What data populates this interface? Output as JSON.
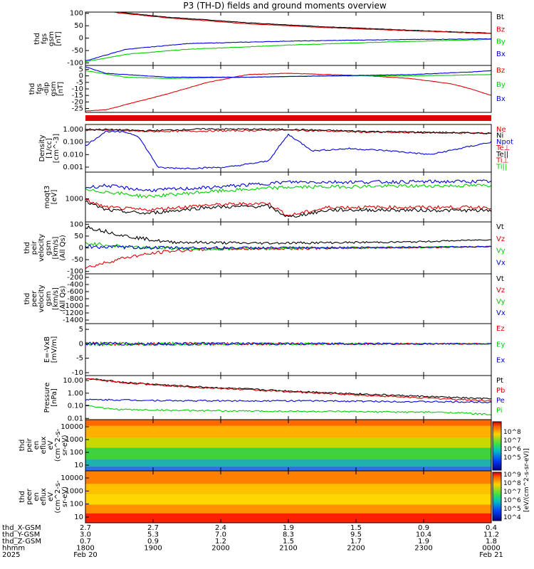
{
  "title": "P3 (TH-D) fields and ground moments overview",
  "colors": {
    "black": "#000000",
    "red": "#e00000",
    "green": "#00d000",
    "blue": "#0000e0"
  },
  "chart_data": [
    {
      "type": "line",
      "ylabel": [
        "thd",
        "fgs",
        "gsm",
        "[nT]"
      ],
      "yticks": [
        100,
        50,
        0,
        -50,
        -100
      ],
      "ylim": [
        -110,
        105
      ],
      "series": [
        {
          "name": "Bt",
          "color": "black",
          "x": [
            0,
            0.08,
            0.2,
            0.4,
            0.6,
            0.8,
            1
          ],
          "y": [
            140,
            105,
            85,
            62,
            45,
            32,
            20
          ]
        },
        {
          "name": "Bz",
          "color": "red",
          "x": [
            0,
            0.08,
            0.2,
            0.4,
            0.6,
            0.8,
            1
          ],
          "y": [
            130,
            102,
            82,
            58,
            42,
            30,
            18
          ]
        },
        {
          "name": "By",
          "color": "green",
          "x": [
            0,
            0.1,
            0.25,
            0.5,
            0.75,
            1
          ],
          "y": [
            -95,
            -65,
            -45,
            -28,
            -15,
            -5
          ]
        },
        {
          "name": "Bx",
          "color": "blue",
          "x": [
            0,
            0.1,
            0.25,
            0.5,
            0.75,
            1
          ],
          "y": [
            -92,
            -45,
            -22,
            -12,
            -6,
            -3
          ]
        }
      ],
      "legend": [
        "Bt",
        "Bz",
        "By",
        "Bx"
      ]
    },
    {
      "type": "line",
      "ylabel": [
        "thd",
        "fgs",
        "-dip",
        "gsm",
        "[nT]"
      ],
      "yticks": [
        5,
        0,
        -5,
        -10,
        -15,
        -20,
        -25
      ],
      "ylim": [
        -28,
        8
      ],
      "series": [
        {
          "name": "Bz",
          "color": "red",
          "x": [
            0,
            0.05,
            0.1,
            0.2,
            0.3,
            0.4,
            0.5,
            0.6,
            0.7,
            0.8,
            0.9,
            0.95,
            1
          ],
          "y": [
            -27,
            -26,
            -22,
            -14,
            -5,
            1,
            2,
            1,
            0,
            -2,
            -6,
            -10,
            -15
          ]
        },
        {
          "name": "By",
          "color": "green",
          "x": [
            0,
            0.1,
            0.2,
            0.4,
            0.6,
            0.8,
            1
          ],
          "y": [
            4,
            -1,
            -2,
            -1,
            0,
            0,
            1
          ]
        },
        {
          "name": "Bx",
          "color": "blue",
          "x": [
            0,
            0.05,
            0.2,
            0.4,
            0.6,
            0.8,
            0.95,
            1
          ],
          "y": [
            7,
            2,
            -1,
            -1,
            0,
            1,
            3,
            4
          ]
        }
      ],
      "legend": [
        "Bz",
        "By",
        "Bx"
      ]
    },
    {
      "type": "line",
      "ylabel": [
        "Density",
        "[1/cc]",
        "[cm^-3]"
      ],
      "yticks": [
        "1.000",
        "0.100",
        "0.010",
        "0.001"
      ],
      "ylog": true,
      "ylim": [
        0.0004,
        2.5
      ],
      "series": [
        {
          "name": "Ne",
          "color": "red",
          "x": [
            0,
            0.05,
            0.15,
            0.3,
            0.5,
            0.7,
            1
          ],
          "y": [
            0.9,
            0.9,
            0.7,
            0.75,
            0.9,
            0.6,
            0.5
          ]
        },
        {
          "name": "Ni",
          "color": "black",
          "x": [
            0,
            0.05,
            0.15,
            0.3,
            0.5,
            0.7,
            1
          ],
          "y": [
            1.0,
            1.0,
            0.8,
            1.1,
            1.0,
            0.7,
            0.5
          ]
        },
        {
          "name": "Npot",
          "color": "blue",
          "x": [
            0,
            0.05,
            0.1,
            0.13,
            0.18,
            0.25,
            0.35,
            0.45,
            0.5,
            0.56,
            0.65,
            0.75,
            0.85,
            1
          ],
          "y": [
            0.05,
            0.7,
            0.6,
            0.3,
            0.0009,
            0.0008,
            0.001,
            0.003,
            0.4,
            0.02,
            0.03,
            0.02,
            0.01,
            0.1
          ]
        }
      ],
      "legend": [
        "Ne",
        "Ni",
        "Npot",
        "Te⊥",
        "Te||",
        "Ti⊥",
        "Ti||"
      ]
    },
    {
      "type": "line",
      "ylabel": [
        "moqt3",
        "[eV]"
      ],
      "yticks": [
        "1000"
      ],
      "ylog": true,
      "ylim": [
        150,
        9000
      ],
      "series": [
        {
          "name": "Te⊥",
          "color": "red",
          "x": [
            0,
            0.05,
            0.15,
            0.3,
            0.45,
            0.5,
            0.6,
            0.75,
            1
          ],
          "y": [
            900,
            500,
            400,
            600,
            700,
            250,
            500,
            500,
            500
          ]
        },
        {
          "name": "Te||",
          "color": "black",
          "x": [
            0,
            0.05,
            0.15,
            0.3,
            0.45,
            0.5,
            0.6,
            0.75,
            1
          ],
          "y": [
            800,
            400,
            300,
            500,
            550,
            220,
            400,
            400,
            380
          ]
        },
        {
          "name": "Ti⊥",
          "color": "blue",
          "x": [
            0,
            0.05,
            0.15,
            0.3,
            0.5,
            0.7,
            1
          ],
          "y": [
            2500,
            3000,
            2000,
            2500,
            4000,
            4000,
            4200
          ]
        },
        {
          "name": "Ti||",
          "color": "green",
          "x": [
            0,
            0.05,
            0.15,
            0.3,
            0.5,
            0.7,
            1
          ],
          "y": [
            2000,
            1800,
            1200,
            1800,
            2600,
            2800,
            3000
          ]
        }
      ]
    },
    {
      "type": "line",
      "ylabel": [
        "thd",
        "peir",
        "velocity",
        "gsm",
        "[km/s]",
        "(All Qs)"
      ],
      "yticks": [
        100,
        50,
        0,
        -50,
        -100
      ],
      "ylim": [
        -110,
        110
      ],
      "series": [
        {
          "name": "Vt",
          "color": "black",
          "x": [
            0,
            0.1,
            0.2,
            0.4,
            0.6,
            0.8,
            1
          ],
          "y": [
            90,
            50,
            25,
            20,
            22,
            25,
            35
          ]
        },
        {
          "name": "Vz",
          "color": "red",
          "x": [
            0,
            0.1,
            0.2,
            0.3,
            0.5,
            0.7,
            1
          ],
          "y": [
            -85,
            -40,
            -15,
            -5,
            -3,
            0,
            5
          ]
        },
        {
          "name": "Vy",
          "color": "green",
          "x": [
            0,
            0.1,
            0.3,
            0.6,
            1
          ],
          "y": [
            20,
            5,
            -5,
            0,
            5
          ]
        },
        {
          "name": "Vx",
          "color": "blue",
          "x": [
            0,
            0.2,
            0.5,
            1
          ],
          "y": [
            5,
            0,
            0,
            5
          ]
        }
      ],
      "legend": [
        "Vt",
        "Vz",
        "Vy",
        "Vx"
      ]
    },
    {
      "type": "line",
      "ylabel": [
        "thd",
        "peer",
        "velocity",
        "gsm",
        "[km/s]",
        "(All Qs)"
      ],
      "yticks": [
        -200,
        -400,
        -600,
        -800,
        -1000,
        -1200,
        -1400
      ],
      "ylim": [
        -1500,
        -100
      ],
      "series": [],
      "legend": [
        "Vt",
        "Vz",
        "Vy",
        "Vx"
      ]
    },
    {
      "type": "line",
      "ylabel": [
        "E=-VxB",
        "[mV/m]"
      ],
      "yticks": [
        5,
        0,
        -5,
        -10
      ],
      "ylim": [
        -11,
        7
      ],
      "series": [
        {
          "name": "Ez",
          "color": "red",
          "x": [
            0,
            1
          ],
          "y": [
            0,
            0
          ]
        },
        {
          "name": "Ey",
          "color": "green",
          "x": [
            0,
            1
          ],
          "y": [
            0,
            0
          ]
        },
        {
          "name": "Ex",
          "color": "blue",
          "x": [
            0,
            1
          ],
          "y": [
            0,
            0
          ]
        }
      ],
      "legend": [
        "Ez",
        "Ey",
        "Ex"
      ]
    },
    {
      "type": "line",
      "ylabel": [
        "Pressure",
        "[nPa]"
      ],
      "yticks": [
        "10.00",
        "1.00",
        "0.10",
        "0.01"
      ],
      "ylog": true,
      "ylim": [
        0.008,
        25
      ],
      "series": [
        {
          "name": "Pt",
          "color": "black",
          "x": [
            0,
            0.1,
            0.25,
            0.5,
            0.75,
            1
          ],
          "y": [
            15,
            7,
            3.5,
            1.5,
            0.7,
            0.35
          ]
        },
        {
          "name": "Pb",
          "color": "red",
          "x": [
            0,
            0.1,
            0.25,
            0.5,
            0.75,
            1
          ],
          "y": [
            14,
            6.5,
            3.2,
            1.3,
            0.55,
            0.25
          ]
        },
        {
          "name": "Pe",
          "color": "blue",
          "x": [
            0,
            0.05,
            0.25,
            0.5,
            0.75,
            0.95,
            1
          ],
          "y": [
            0.3,
            0.3,
            0.25,
            0.25,
            0.22,
            0.2,
            0.2
          ]
        },
        {
          "name": "Pi",
          "color": "green",
          "x": [
            0,
            0.05,
            0.1,
            0.3,
            0.6,
            0.9,
            1
          ],
          "y": [
            0.12,
            0.06,
            0.05,
            0.04,
            0.035,
            0.03,
            0.02
          ]
        }
      ],
      "legend": [
        "Pt",
        "Pb",
        "Pe",
        "Pi"
      ]
    },
    {
      "type": "heatmap",
      "ylabel": [
        "thd",
        "peir",
        "en",
        "eflux",
        "eV",
        "(cm^2-s-",
        "sr-eV)"
      ],
      "yticks": [
        "10000",
        "1000",
        "100",
        "10"
      ]
    },
    {
      "type": "heatmap",
      "ylabel": [
        "thd",
        "peer",
        "en",
        "eflux",
        "eV",
        "(cm^2-s-",
        "sr-eV)"
      ],
      "yticks": [
        "10000",
        "1000",
        "100",
        "10"
      ]
    }
  ],
  "colorbar": {
    "ticks_top": [
      "10^8",
      "10^7",
      "10^6",
      "10^5"
    ],
    "ticks_bottom": [
      "10^9",
      "10^8",
      "10^7",
      "10^6",
      "10^5",
      "10^4"
    ],
    "label": "[eV/(cm^2-s-sr-eV)]"
  },
  "xaxis": {
    "rows": [
      {
        "label": "thd_X-GSM",
        "values": [
          "2.7",
          "2.7",
          "2.4",
          "1.9",
          "1.5",
          "0.9",
          "0.4"
        ]
      },
      {
        "label": "thd_Y-GSM",
        "values": [
          "3.0",
          "5.3",
          "7.0",
          "8.3",
          "9.5",
          "10.4",
          "11.2"
        ]
      },
      {
        "label": "thd_Z-GSM",
        "values": [
          "0.7",
          "0.9",
          "1.2",
          "1.5",
          "1.7",
          "1.9",
          "1.8"
        ]
      },
      {
        "label": "hhmm",
        "values": [
          "1800",
          "1900",
          "2000",
          "2100",
          "2200",
          "2300",
          "0000"
        ]
      },
      {
        "label": "2025",
        "values": [
          "Feb 20",
          "",
          "",
          "",
          "",
          "",
          "Feb 21"
        ]
      }
    ]
  }
}
